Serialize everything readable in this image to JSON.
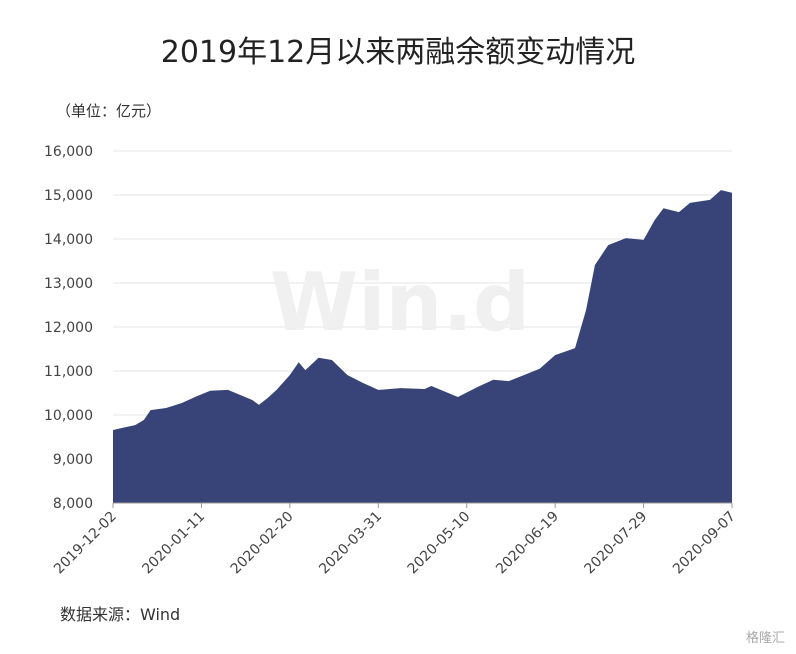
{
  "chart_data": {
    "type": "area",
    "title": "2019年12月以来两融余额变动情况",
    "unit_label": "（单位：亿元）",
    "source": "数据来源：Wind",
    "watermark": "Win.d",
    "logo": "格隆汇",
    "color": "#384477",
    "grid": true,
    "x": [
      "2019-12-02",
      "2019-12-12",
      "2019-12-16",
      "2019-12-19",
      "2019-12-26",
      "2020-01-02",
      "2020-01-09",
      "2020-01-15",
      "2020-01-23",
      "2020-02-03",
      "2020-02-06",
      "2020-02-10",
      "2020-02-14",
      "2020-02-20",
      "2020-02-24",
      "2020-02-27",
      "2020-03-04",
      "2020-03-10",
      "2020-03-17",
      "2020-03-24",
      "2020-03-31",
      "2020-04-10",
      "2020-04-21",
      "2020-04-24",
      "2020-05-06",
      "2020-05-15",
      "2020-05-22",
      "2020-05-29",
      "2020-06-05",
      "2020-06-12",
      "2020-06-19",
      "2020-06-28",
      "2020-07-03",
      "2020-07-07",
      "2020-07-13",
      "2020-07-21",
      "2020-07-29",
      "2020-08-03",
      "2020-08-07",
      "2020-08-14",
      "2020-08-19",
      "2020-08-28",
      "2020-09-02",
      "2020-09-07"
    ],
    "values": [
      9660,
      9770,
      9890,
      10110,
      10160,
      10270,
      10430,
      10550,
      10570,
      10340,
      10230,
      10390,
      10570,
      10910,
      11200,
      11020,
      11300,
      11250,
      10910,
      10730,
      10570,
      10610,
      10590,
      10660,
      10410,
      10640,
      10800,
      10770,
      10910,
      11050,
      11360,
      11520,
      12390,
      13410,
      13860,
      14020,
      13980,
      14430,
      14700,
      14610,
      14820,
      14890,
      15110,
      15050
    ],
    "xlim": [
      "2019-12-02",
      "2020-09-07"
    ],
    "xticks": [
      "2019-12-02",
      "2020-01-11",
      "2020-02-20",
      "2020-03-31",
      "2020-05-10",
      "2020-06-19",
      "2020-07-29",
      "2020-09-07"
    ],
    "ylim": [
      8000,
      16000
    ],
    "yticks": [
      {
        "value": 8000,
        "label": "8,000"
      },
      {
        "value": 9000,
        "label": "9,000"
      },
      {
        "value": 10000,
        "label": "10,000"
      },
      {
        "value": 11000,
        "label": "11,000"
      },
      {
        "value": 12000,
        "label": "12,000"
      },
      {
        "value": 13000,
        "label": "13,000"
      },
      {
        "value": 14000,
        "label": "14,000"
      },
      {
        "value": 15000,
        "label": "15,000"
      },
      {
        "value": 16000,
        "label": "16,000"
      }
    ]
  }
}
